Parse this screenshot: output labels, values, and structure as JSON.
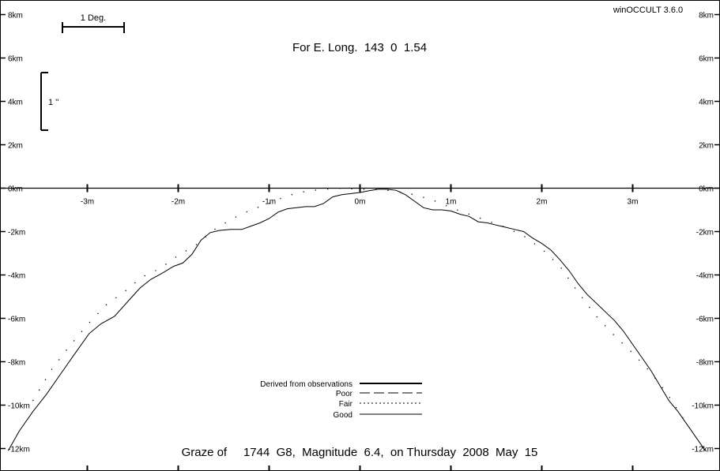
{
  "app_label": "winOCCULT 3.6.0",
  "longitude_label": "For E. Long.  143  0  1.54",
  "footer_title": "Graze of     1744  G8,  Magnitude  6.4,  on Thursday  2008  May  15",
  "scale_deg_label": "1 Deg.",
  "scale_arcsec_label": "1 ''",
  "chart_data": {
    "type": "line",
    "x_unit": "m",
    "y_unit": "km",
    "xlim": [
      -3.9,
      3.9
    ],
    "ylim": [
      -12.2,
      8.8
    ],
    "x_ticks": [
      {
        "value": -3,
        "label": "-3m"
      },
      {
        "value": -2,
        "label": "-2m"
      },
      {
        "value": -1,
        "label": "-1m"
      },
      {
        "value": 0,
        "label": "0m"
      },
      {
        "value": 1,
        "label": "1m"
      },
      {
        "value": 2,
        "label": "2m"
      },
      {
        "value": 3,
        "label": "3m"
      }
    ],
    "y_ticks": [
      {
        "value": 8,
        "label": "8km"
      },
      {
        "value": 6,
        "label": "6km"
      },
      {
        "value": 4,
        "label": "4km"
      },
      {
        "value": 2,
        "label": "2km"
      },
      {
        "value": 0,
        "label": "0km"
      },
      {
        "value": -2,
        "label": "-2km"
      },
      {
        "value": -4,
        "label": "-4km"
      },
      {
        "value": -6,
        "label": "-6km"
      },
      {
        "value": -8,
        "label": "-8km"
      },
      {
        "value": -10,
        "label": "-10km"
      },
      {
        "value": -12,
        "label": "-12km"
      }
    ],
    "legend": {
      "placement": "bottom-center",
      "entries": [
        {
          "label": "Derived from observations",
          "style": "thick"
        },
        {
          "label": "Poor",
          "style": "dashed"
        },
        {
          "label": "Fair",
          "style": "dotted"
        },
        {
          "label": "Good",
          "style": "thin"
        }
      ]
    },
    "series": [
      {
        "style": "thin",
        "x": [
          -3.87,
          -3.75,
          -3.6,
          -3.45,
          -3.3,
          -3.15,
          -2.98,
          -2.85,
          -2.7,
          -2.55,
          -2.42,
          -2.3,
          -2.17,
          -2.05,
          -1.95,
          -1.85,
          -1.75,
          -1.65,
          -1.55,
          -1.42,
          -1.3,
          -1.2,
          -1.1,
          -1.0,
          -0.9,
          -0.8,
          -0.7,
          -0.6,
          -0.5,
          -0.4,
          -0.3,
          -0.2,
          -0.1,
          0.0,
          0.1,
          0.2,
          0.3,
          0.4,
          0.5,
          0.6,
          0.7,
          0.8,
          0.9,
          1.0,
          1.1,
          1.2,
          1.3,
          1.4,
          1.5,
          1.6,
          1.7,
          1.8,
          1.9,
          2.0,
          2.1,
          2.2,
          2.3,
          2.4,
          2.5,
          2.6,
          2.7,
          2.8,
          2.9,
          3.0,
          3.1,
          3.2,
          3.3,
          3.4,
          3.5,
          3.6,
          3.7,
          3.8
        ],
        "y": [
          -12.1,
          -11.2,
          -10.3,
          -9.5,
          -8.6,
          -7.7,
          -6.7,
          -6.25,
          -5.9,
          -5.2,
          -4.6,
          -4.2,
          -3.9,
          -3.6,
          -3.45,
          -3.05,
          -2.4,
          -2.05,
          -1.95,
          -1.9,
          -1.9,
          -1.75,
          -1.6,
          -1.4,
          -1.1,
          -0.95,
          -0.9,
          -0.85,
          -0.85,
          -0.7,
          -0.4,
          -0.3,
          -0.25,
          -0.2,
          -0.12,
          -0.05,
          -0.05,
          -0.1,
          -0.3,
          -0.6,
          -0.9,
          -1.0,
          -1.0,
          -1.05,
          -1.2,
          -1.3,
          -1.55,
          -1.6,
          -1.7,
          -1.8,
          -1.9,
          -2.0,
          -2.3,
          -2.55,
          -2.85,
          -3.3,
          -3.8,
          -4.4,
          -4.9,
          -5.3,
          -5.7,
          -6.1,
          -6.6,
          -7.2,
          -7.8,
          -8.4,
          -9.1,
          -9.8,
          -10.3,
          -10.9,
          -11.5,
          -12.1
        ]
      },
      {
        "style": "dotted",
        "x": [
          -3.6,
          -3.4,
          -3.2,
          -3.0,
          -2.8,
          -2.6,
          -2.4,
          -2.2,
          -2.0,
          -1.8,
          -1.6,
          -1.4,
          -1.2,
          -1.0,
          -0.8,
          -0.6,
          -0.4,
          -0.2,
          0.0,
          0.2,
          0.4,
          0.6,
          0.8,
          1.0,
          1.2,
          1.4,
          1.6,
          1.8,
          2.0,
          2.2,
          2.4,
          2.6,
          2.8,
          3.0,
          3.2,
          3.4,
          3.6
        ],
        "y": [
          -9.8,
          -8.4,
          -7.3,
          -6.3,
          -5.4,
          -4.8,
          -4.1,
          -3.7,
          -3.1,
          -2.6,
          -1.9,
          -1.4,
          -1.0,
          -0.7,
          -0.35,
          -0.15,
          -0.05,
          0.0,
          -0.05,
          -0.05,
          -0.15,
          -0.3,
          -0.55,
          -0.9,
          -1.2,
          -1.5,
          -1.8,
          -2.2,
          -2.8,
          -3.6,
          -4.8,
          -5.9,
          -6.8,
          -7.6,
          -8.5,
          -9.6,
          -10.9
        ]
      }
    ]
  }
}
